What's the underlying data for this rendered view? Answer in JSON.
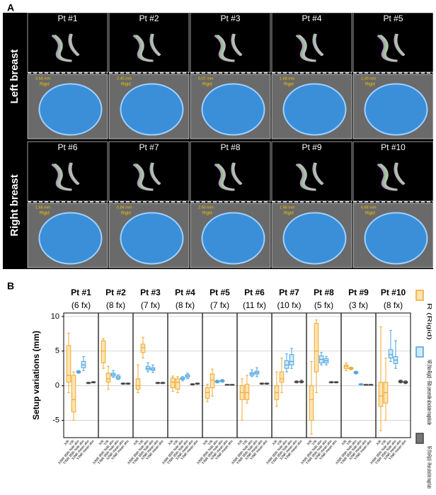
{
  "panel_a": {
    "label": "A",
    "rows": [
      {
        "label": "Left breast",
        "patients": [
          {
            "title": "Pt #1",
            "distance": "3.58 mm",
            "rigid": "Rigid"
          },
          {
            "title": "Pt #2",
            "distance": "2.45 mm",
            "rigid": "Rigid"
          },
          {
            "title": "Pt #3",
            "distance": "0.07 mm",
            "rigid": "Rigid"
          },
          {
            "title": "Pt #4",
            "distance": "1.68 mm",
            "rigid": "Rigid"
          },
          {
            "title": "Pt #5",
            "distance": "2.30 mm",
            "rigid": "Rigid"
          }
        ]
      },
      {
        "label": "Right breast",
        "patients": [
          {
            "title": "Pt #6",
            "distance": "1.66 mm",
            "rigid": "Rigid"
          },
          {
            "title": "Pt #7",
            "distance": "0.84 mm",
            "rigid": "Rigid"
          },
          {
            "title": "Pt #8",
            "distance": "2.60 mm",
            "rigid": "Rigid"
          },
          {
            "title": "Pt #9",
            "distance": "1.66 mm",
            "rigid": "Rigid"
          },
          {
            "title": "Pt #10",
            "distance": "6.68 mm",
            "rigid": "Rigid"
          }
        ]
      }
    ]
  },
  "chart_data": {
    "type": "box",
    "label": "B",
    "ylabel": "Setup variations (mm)",
    "ylim": [
      -7.5,
      10.5
    ],
    "yticks": [
      -5,
      0,
      5,
      10
    ],
    "grid": true,
    "categories": [
      "X/R",
      "Y/R",
      "X/NR 95th %ile abs",
      "Y/NR 95th %ile abs",
      "X/NR mean abs",
      "Y/NR mean abs"
    ],
    "series": [
      {
        "name": "R (Rigid)",
        "color": "#f0a830"
      },
      {
        "name": "NR (NonRigid) - 95th percentile absolute magnitude",
        "color": "#4aa3df"
      },
      {
        "name": "NR (NonRigid) - Mean absolute magnitude",
        "color": "#444444"
      }
    ],
    "groups": [
      {
        "name": "Pt #1",
        "fractions": "(6 fx)",
        "boxes": [
          [
            -1,
            0.5,
            1.5,
            5.8,
            7.6
          ],
          [
            -5,
            -3.8,
            -2,
            1.5,
            2
          ],
          [
            1.8,
            1.9,
            2,
            2.1,
            2.2
          ],
          [
            2.2,
            2.6,
            3,
            3.5,
            4.2
          ],
          [
            0.3,
            0.35,
            0.4,
            0.45,
            0.5
          ],
          [
            0.4,
            0.45,
            0.5,
            0.55,
            0.6
          ]
        ]
      },
      {
        "name": "Pt #2",
        "fractions": "(8 fx)",
        "boxes": [
          [
            2.5,
            3.3,
            5,
            6.5,
            6.8
          ],
          [
            -0.5,
            0.5,
            1,
            1.8,
            2.8
          ],
          [
            1.2,
            1.4,
            1.6,
            1.8,
            2.2
          ],
          [
            0.9,
            1,
            1.2,
            1.4,
            1.6
          ],
          [
            0.2,
            0.25,
            0.3,
            0.35,
            0.4
          ],
          [
            0.2,
            0.25,
            0.3,
            0.35,
            0.4
          ]
        ]
      },
      {
        "name": "Pt #3",
        "fractions": "(7 fx)",
        "boxes": [
          [
            -1,
            -0.5,
            0,
            1,
            3
          ],
          [
            4,
            4.8,
            5.5,
            6,
            7
          ],
          [
            2,
            2.3,
            2.5,
            2.8,
            3.3
          ],
          [
            1.9,
            2.2,
            2.4,
            2.6,
            3
          ],
          [
            0.3,
            0.35,
            0.4,
            0.45,
            0.5
          ],
          [
            0.3,
            0.35,
            0.4,
            0.45,
            0.5
          ]
        ]
      },
      {
        "name": "Pt #4",
        "fractions": "(8 fx)",
        "boxes": [
          [
            -0.8,
            -0.3,
            0.5,
            1.1,
            1.4
          ],
          [
            -1,
            -0.5,
            0.5,
            1,
            1.3
          ],
          [
            0.7,
            0.9,
            1,
            1.2,
            1.3
          ],
          [
            1,
            1.2,
            1.4,
            1.6,
            1.8
          ],
          [
            0.1,
            0.15,
            0.2,
            0.25,
            0.3
          ],
          [
            0.2,
            0.25,
            0.3,
            0.35,
            0.4
          ]
        ]
      },
      {
        "name": "Pt #5",
        "fractions": "(7 fx)",
        "boxes": [
          [
            -2.3,
            -1.8,
            -1,
            -0.3,
            0.2
          ],
          [
            -1.5,
            -0.3,
            0.8,
            1.7,
            2.4
          ],
          [
            0.4,
            0.5,
            0.6,
            0.7,
            0.8
          ],
          [
            0.5,
            0.6,
            0.7,
            0.8,
            0.9
          ],
          [
            0.1,
            0.12,
            0.15,
            0.18,
            0.2
          ],
          [
            0.1,
            0.12,
            0.15,
            0.18,
            0.2
          ]
        ]
      },
      {
        "name": "Pt #6",
        "fractions": "(11 fx)",
        "boxes": [
          [
            -5,
            -2,
            -1,
            0,
            1
          ],
          [
            -2.5,
            -2,
            -1,
            0.2,
            1.5
          ],
          [
            1.3,
            1.5,
            1.7,
            1.9,
            2.3
          ],
          [
            1.3,
            1.7,
            1.9,
            2.1,
            2.6
          ],
          [
            0.2,
            0.25,
            0.3,
            0.35,
            0.4
          ],
          [
            0.2,
            0.25,
            0.3,
            0.35,
            0.4
          ]
        ]
      },
      {
        "name": "Pt #7",
        "fractions": "(10 fx)",
        "boxes": [
          [
            -3,
            -2,
            -1,
            0,
            2
          ],
          [
            -1,
            0.5,
            1,
            2,
            4
          ],
          [
            2,
            2.5,
            3,
            3.6,
            4.6
          ],
          [
            2.5,
            3,
            3.5,
            4.5,
            5.4
          ],
          [
            0.4,
            0.5,
            0.55,
            0.6,
            0.7
          ],
          [
            0.4,
            0.5,
            0.55,
            0.65,
            0.8
          ]
        ]
      },
      {
        "name": "Pt #8",
        "fractions": "(5 fx)",
        "boxes": [
          [
            -7,
            -5,
            -2,
            0,
            3.5
          ],
          [
            -1,
            2,
            5,
            9,
            9.5
          ],
          [
            3,
            3.3,
            3.8,
            4.3,
            4.8
          ],
          [
            3,
            3.3,
            3.6,
            3.9,
            4.2
          ],
          [
            0.4,
            0.45,
            0.5,
            0.55,
            0.6
          ],
          [
            0.4,
            0.45,
            0.5,
            0.55,
            0.6
          ]
        ]
      },
      {
        "name": "Pt #9",
        "fractions": "(3 fx)",
        "boxes": [
          [
            2.2,
            2.5,
            2.8,
            3,
            3.3
          ],
          [
            2.3,
            2.4,
            2.5,
            2.6,
            2.7
          ],
          [
            1.7,
            1.8,
            1.9,
            2,
            2.1
          ],
          [
            0.1,
            0.15,
            0.2,
            0.25,
            0.3
          ],
          [
            0.1,
            0.12,
            0.15,
            0.18,
            0.2
          ],
          [
            0.1,
            0.12,
            0.15,
            0.18,
            0.2
          ]
        ]
      },
      {
        "name": "Pt #10",
        "fractions": "(8 fx)",
        "boxes": [
          [
            -6.5,
            -3,
            -1.5,
            0.5,
            8.5
          ],
          [
            -5,
            -2.5,
            -1,
            0.5,
            4
          ],
          [
            3.5,
            4,
            4.5,
            5.2,
            8
          ],
          [
            2.5,
            3.2,
            3.7,
            4.2,
            6.5
          ],
          [
            0.4,
            0.5,
            0.6,
            0.7,
            0.8
          ],
          [
            0.3,
            0.4,
            0.5,
            0.6,
            0.7
          ]
        ]
      }
    ]
  }
}
